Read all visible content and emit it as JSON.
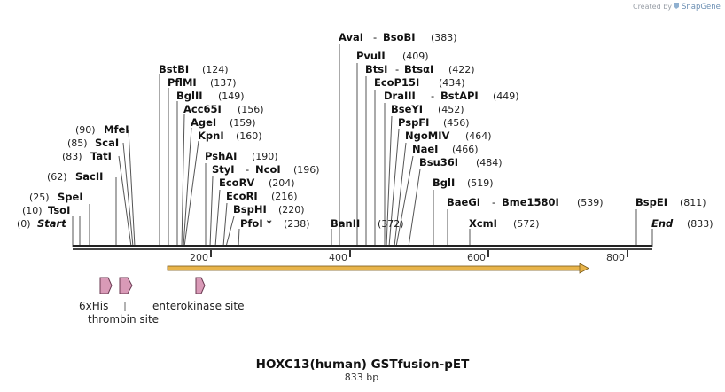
{
  "credit": {
    "prefix": "Created by",
    "brand": "SnapGene"
  },
  "map": {
    "title": "HOXC13(human) GSTfusion-pET",
    "length_label": "833 bp",
    "total_bp": 833,
    "start_label": "Start",
    "start_pos": "(0)",
    "end_label": "End",
    "end_pos": "(833)",
    "ticks": [
      "200",
      "400",
      "600",
      "800"
    ]
  },
  "sites": [
    {
      "name": "TsoI",
      "pos": "(10)"
    },
    {
      "name": "SpeI",
      "pos": "(25)"
    },
    {
      "name": "SacII",
      "pos": "(62)"
    },
    {
      "name": "TatI",
      "pos": "(83)"
    },
    {
      "name": "ScaI",
      "pos": "(85)"
    },
    {
      "name": "MfeI",
      "pos": "(90)"
    },
    {
      "name": "BstBI",
      "pos": "(124)"
    },
    {
      "name": "PflMI",
      "pos": "(137)"
    },
    {
      "name": "BglII",
      "pos": "(149)"
    },
    {
      "name": "Acc65I",
      "pos": "(156)"
    },
    {
      "name": "AgeI",
      "pos": "(159)"
    },
    {
      "name": "KpnI",
      "pos": "(160)"
    },
    {
      "name": "PshAI",
      "pos": "(190)"
    },
    {
      "name": "StyI",
      "name2": "NcoI",
      "pos": "(196)"
    },
    {
      "name": "EcoRV",
      "pos": "(204)"
    },
    {
      "name": "EcoRI",
      "pos": "(216)"
    },
    {
      "name": "BspHI",
      "pos": "(220)"
    },
    {
      "name": "PfoI *",
      "pos": "(238)"
    },
    {
      "name": "BanII",
      "pos": "(372)"
    },
    {
      "name": "AvaI",
      "name2": "BsoBI",
      "pos": "(383)"
    },
    {
      "name": "PvuII",
      "pos": "(409)"
    },
    {
      "name": "BtsI",
      "name2": "BtsαI",
      "pos": "(422)"
    },
    {
      "name": "EcoP15I",
      "pos": "(434)"
    },
    {
      "name": "DraIII",
      "name2": "BstAPI",
      "pos": "(449)"
    },
    {
      "name": "BseYI",
      "pos": "(452)"
    },
    {
      "name": "PspFI",
      "pos": "(456)"
    },
    {
      "name": "NgoMIV",
      "pos": "(464)"
    },
    {
      "name": "NaeI",
      "pos": "(466)"
    },
    {
      "name": "Bsu36I",
      "pos": "(484)"
    },
    {
      "name": "BglI",
      "pos": "(519)"
    },
    {
      "name": "BaeGI",
      "name2": "Bme1580I",
      "pos": "(539)"
    },
    {
      "name": "XcmI",
      "pos": "(572)"
    },
    {
      "name": "BspEI",
      "pos": "(811)"
    }
  ],
  "features": [
    {
      "name": "6xHis"
    },
    {
      "name": "thrombin site"
    },
    {
      "name": "enterokinase site"
    }
  ],
  "colors": {
    "feature_arrow": "#d99ab7",
    "orf": "#e8b44a",
    "backbone": "#222222"
  }
}
